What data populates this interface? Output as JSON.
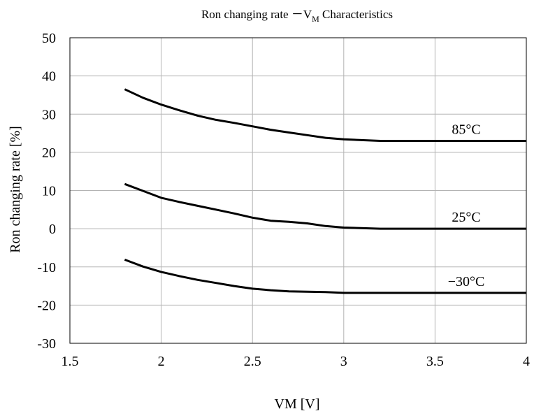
{
  "chart_data": {
    "type": "line",
    "title_main": "Ron changing rate －V",
    "title_sub": "M",
    "title_tail": " Characteristics",
    "xlabel": "VM [V]",
    "ylabel": "Ron changing rate [%]",
    "xlim": [
      1.5,
      4
    ],
    "ylim": [
      -30,
      50
    ],
    "xticks": [
      "1.5",
      "2",
      "2.5",
      "3",
      "3.5",
      "4"
    ],
    "yticks": [
      "50",
      "40",
      "30",
      "20",
      "10",
      "0",
      "-10",
      "-20",
      "-30"
    ],
    "grid": true,
    "series": [
      {
        "name": "85°C",
        "points": [
          [
            1.8,
            36.5
          ],
          [
            1.9,
            34.3
          ],
          [
            2.0,
            32.5
          ],
          [
            2.1,
            31.0
          ],
          [
            2.2,
            29.6
          ],
          [
            2.3,
            28.5
          ],
          [
            2.4,
            27.7
          ],
          [
            2.5,
            26.8
          ],
          [
            2.6,
            25.9
          ],
          [
            2.7,
            25.2
          ],
          [
            2.8,
            24.5
          ],
          [
            2.9,
            23.8
          ],
          [
            3.0,
            23.4
          ],
          [
            3.2,
            23.0
          ],
          [
            3.5,
            23.0
          ],
          [
            4.0,
            23.0
          ]
        ]
      },
      {
        "name": "25°C",
        "points": [
          [
            1.8,
            11.7
          ],
          [
            1.9,
            9.9
          ],
          [
            2.0,
            8.1
          ],
          [
            2.1,
            7.0
          ],
          [
            2.2,
            6.0
          ],
          [
            2.3,
            5.0
          ],
          [
            2.4,
            4.0
          ],
          [
            2.5,
            2.9
          ],
          [
            2.6,
            2.1
          ],
          [
            2.7,
            1.8
          ],
          [
            2.8,
            1.4
          ],
          [
            2.9,
            0.7
          ],
          [
            3.0,
            0.3
          ],
          [
            3.2,
            0.0
          ],
          [
            3.5,
            0.0
          ],
          [
            4.0,
            0.0
          ]
        ]
      },
      {
        "name": "−30°C",
        "points": [
          [
            1.8,
            -8.1
          ],
          [
            1.9,
            -9.9
          ],
          [
            2.0,
            -11.3
          ],
          [
            2.1,
            -12.4
          ],
          [
            2.2,
            -13.4
          ],
          [
            2.3,
            -14.2
          ],
          [
            2.4,
            -15.0
          ],
          [
            2.5,
            -15.7
          ],
          [
            2.6,
            -16.1
          ],
          [
            2.7,
            -16.4
          ],
          [
            2.8,
            -16.5
          ],
          [
            2.9,
            -16.6
          ],
          [
            3.0,
            -16.8
          ],
          [
            3.2,
            -16.8
          ],
          [
            3.5,
            -16.8
          ],
          [
            4.0,
            -16.8
          ]
        ]
      }
    ]
  }
}
